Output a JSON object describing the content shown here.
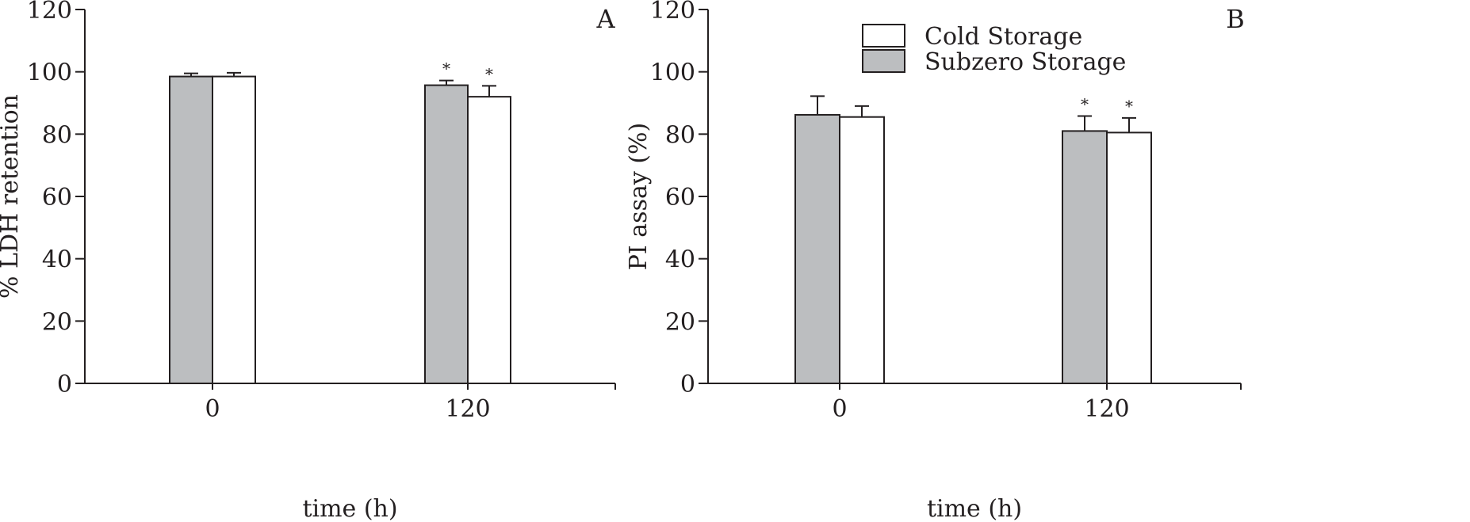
{
  "chart_data": [
    {
      "type": "bar",
      "panel_label": "A",
      "categories": [
        "0",
        "120"
      ],
      "xlabel": "time (h)",
      "ylabel": "% LDH retention",
      "ylim": [
        0,
        120
      ],
      "yticks": [
        "0",
        "20",
        "40",
        "60",
        "80",
        "100",
        "120"
      ],
      "series": [
        {
          "key": "subzero",
          "color": "#bcbec0",
          "values": [
            98.5,
            95.7
          ],
          "errors": [
            1.0,
            1.5
          ],
          "marks": [
            "",
            "*"
          ]
        },
        {
          "key": "cold",
          "color": "#ffffff",
          "values": [
            98.5,
            92.0
          ],
          "errors": [
            1.2,
            3.5
          ],
          "marks": [
            "",
            "*"
          ]
        }
      ],
      "legend": null
    },
    {
      "type": "bar",
      "panel_label": "B",
      "categories": [
        "0",
        "120"
      ],
      "xlabel": "time (h)",
      "ylabel": "PI assay (%)",
      "ylim": [
        0,
        120
      ],
      "yticks": [
        "0",
        "20",
        "40",
        "60",
        "80",
        "100",
        "120"
      ],
      "series": [
        {
          "key": "subzero",
          "name": "Subzero Storage",
          "color": "#bcbec0",
          "values": [
            86.2,
            81.0
          ],
          "errors": [
            6.0,
            4.8
          ],
          "marks": [
            "",
            "*"
          ]
        },
        {
          "key": "cold",
          "name": "Cold Storage",
          "color": "#ffffff",
          "values": [
            85.5,
            80.5
          ],
          "errors": [
            3.5,
            4.7
          ],
          "marks": [
            "",
            "*"
          ]
        }
      ],
      "legend": {
        "placement": "top-center",
        "entries": [
          "Cold Storage",
          "Subzero Storage"
        ]
      }
    }
  ]
}
